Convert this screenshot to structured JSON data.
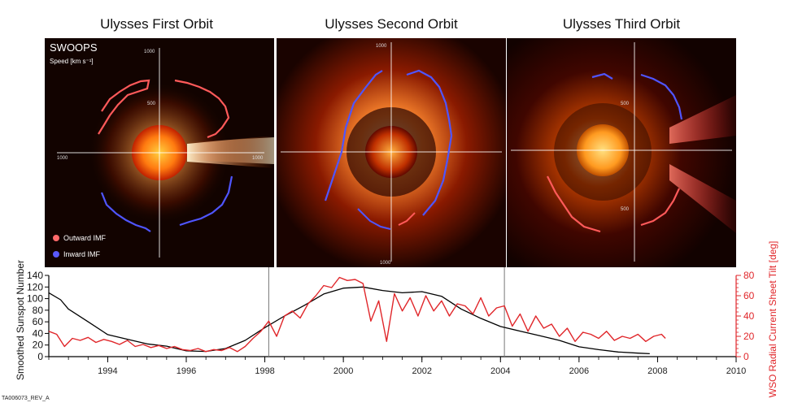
{
  "titles": {
    "first": "Ulysses First Orbit",
    "second": "Ulysses Second Orbit",
    "third": "Ulysses Third Orbit"
  },
  "panel_labels": {
    "instrument": "SWOOPS",
    "speed_unit": "Speed [km s⁻¹]",
    "tick_1000": "1000",
    "tick_500": "500",
    "outward": "Outward IMF",
    "inward": "Inward IMF"
  },
  "colors": {
    "outward": "#ff5a5a",
    "inward": "#4f55ff",
    "sunspot_line": "#000000",
    "tilt_line": "#e0262a",
    "right_axis": "#e0262a"
  },
  "reference_code": "TA006073_REV_A",
  "chart_data": {
    "type": "line",
    "xlabel": "",
    "xlim": [
      1992.5,
      2010
    ],
    "xticks": [
      1994,
      1996,
      1998,
      2000,
      2002,
      2004,
      2006,
      2008,
      2010
    ],
    "left_axis": {
      "label": "Smoothed Sunspot Number",
      "lim": [
        0,
        140
      ],
      "ticks": [
        0,
        20,
        40,
        60,
        80,
        100,
        120,
        140
      ]
    },
    "right_axis": {
      "label": "WSO Radial Current Sheet Tilt [deg]",
      "lim": [
        0,
        80
      ],
      "ticks": [
        0,
        20,
        40,
        60,
        80
      ]
    },
    "orbit_boundaries": [
      1998.1,
      2004.1
    ],
    "series": [
      {
        "name": "Smoothed Sunspot Number",
        "axis": "left",
        "x": [
          1992.5,
          1992.8,
          1993.0,
          1993.5,
          1994.0,
          1994.5,
          1995.0,
          1995.5,
          1996.0,
          1996.5,
          1997.0,
          1997.5,
          1998.0,
          1998.5,
          1999.0,
          1999.5,
          2000.0,
          2000.5,
          2001.0,
          2001.5,
          2002.0,
          2002.5,
          2003.0,
          2003.5,
          2004.0,
          2004.5,
          2005.0,
          2005.5,
          2006.0,
          2006.5,
          2007.0,
          2007.5,
          2007.8
        ],
        "values": [
          110,
          98,
          82,
          60,
          38,
          30,
          22,
          18,
          10,
          9,
          14,
          28,
          50,
          70,
          88,
          108,
          118,
          120,
          114,
          110,
          112,
          104,
          82,
          66,
          52,
          44,
          36,
          28,
          17,
          12,
          8,
          6,
          5
        ]
      },
      {
        "name": "WSO Radial Current Sheet Tilt",
        "axis": "right",
        "x": [
          1992.5,
          1992.7,
          1992.9,
          1993.1,
          1993.3,
          1993.5,
          1993.7,
          1993.9,
          1994.1,
          1994.3,
          1994.5,
          1994.7,
          1994.9,
          1995.1,
          1995.3,
          1995.5,
          1995.7,
          1995.9,
          1996.1,
          1996.3,
          1996.5,
          1996.7,
          1996.9,
          1997.1,
          1997.3,
          1997.5,
          1997.7,
          1997.9,
          1998.1,
          1998.3,
          1998.5,
          1998.7,
          1998.9,
          1999.1,
          1999.3,
          1999.5,
          1999.7,
          1999.9,
          2000.1,
          2000.3,
          2000.5,
          2000.7,
          2000.9,
          2001.1,
          2001.3,
          2001.5,
          2001.7,
          2001.9,
          2002.1,
          2002.3,
          2002.5,
          2002.7,
          2002.9,
          2003.1,
          2003.3,
          2003.5,
          2003.7,
          2003.9,
          2004.1,
          2004.3,
          2004.5,
          2004.7,
          2004.9,
          2005.1,
          2005.3,
          2005.5,
          2005.7,
          2005.9,
          2006.1,
          2006.3,
          2006.5,
          2006.7,
          2006.9,
          2007.1,
          2007.3,
          2007.5,
          2007.7,
          2007.9,
          2008.1,
          2008.2
        ],
        "values": [
          25,
          22,
          10,
          18,
          16,
          19,
          14,
          17,
          15,
          12,
          16,
          10,
          12,
          9,
          11,
          8,
          10,
          7,
          6,
          8,
          5,
          7,
          6,
          9,
          5,
          10,
          18,
          25,
          35,
          20,
          40,
          45,
          38,
          52,
          60,
          70,
          68,
          78,
          75,
          76,
          72,
          35,
          55,
          15,
          62,
          45,
          58,
          40,
          60,
          45,
          55,
          40,
          52,
          50,
          42,
          58,
          40,
          48,
          50,
          30,
          42,
          25,
          40,
          28,
          32,
          20,
          28,
          15,
          24,
          22,
          18,
          25,
          16,
          20,
          18,
          22,
          15,
          20,
          22,
          18
        ]
      }
    ]
  }
}
